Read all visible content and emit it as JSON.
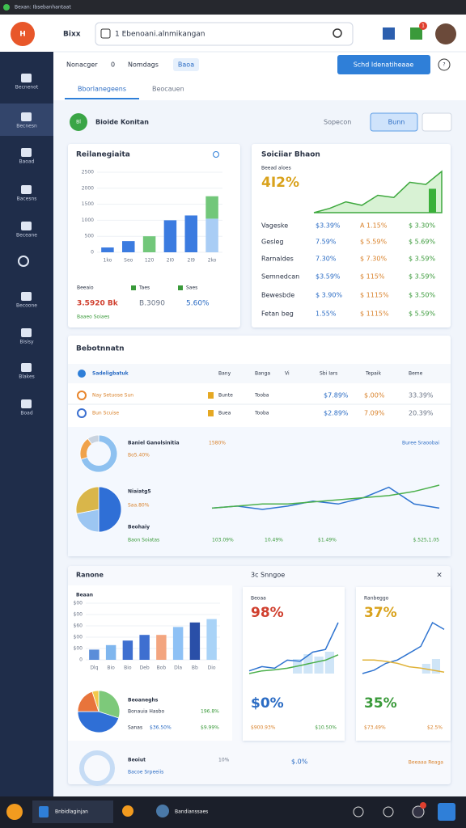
{
  "os_bar": {
    "title": "Bexan: Ibsebanhantaat"
  },
  "header": {
    "logo": "H",
    "brand": "Bixx",
    "search": "1 Ebenoani.alnmikangan",
    "badge": "1"
  },
  "sidebar": [
    "Becnenot",
    "Becnesn",
    "Baoad",
    "Bacesns",
    "Beceane",
    "Becoone",
    "Bisisy",
    "Blakes",
    "Boad"
  ],
  "toolbar": {
    "items": [
      "Nonacger",
      "0",
      "Nomdags"
    ],
    "chip": "Baoa",
    "button": "Schd Idenatiheaae",
    "help": "?"
  },
  "tabs": [
    "Bborlanegeens",
    "Beocauen"
  ],
  "filter": {
    "badge": "Bl",
    "title": "Bioide Konitan",
    "sort": "Sopecon",
    "button": "Bunn"
  },
  "revenue": {
    "title": "Reilanegiaita",
    "ylim": [
      0,
      2500
    ],
    "yticks": [
      0,
      500,
      1000,
      1500,
      2000,
      2500
    ],
    "categories": [
      "1ko",
      "Seo",
      "120",
      "2I0",
      "2I9",
      "2ko"
    ],
    "series": [
      {
        "color": "#3b7be0",
        "values": [
          150,
          350,
          0,
          1000,
          1150,
          0
        ]
      },
      {
        "color": "#a9cdf5",
        "values": [
          0,
          0,
          0,
          0,
          0,
          1050
        ]
      },
      {
        "color": "#72c77a",
        "values": [
          0,
          0,
          500,
          0,
          0,
          700
        ]
      }
    ],
    "stats": [
      {
        "label": "Beeaio",
        "value": "3.5920 Bk"
      },
      {
        "label": "Taes",
        "value": "B.3090"
      },
      {
        "label": "Saes",
        "value": "5.60%"
      }
    ],
    "footer": "Baaeo Soiaes"
  },
  "summary": {
    "title": "Soiciiar Bhaon",
    "subtitle": "Beead aloes",
    "headline": "4I2%",
    "trend": [
      0.05,
      0.15,
      0.3,
      0.22,
      0.45,
      0.4,
      0.75,
      0.7,
      1.0
    ],
    "highlight": 0.6,
    "rows": [
      [
        "Vageske",
        "$3.39%",
        "A 1.15%",
        "$ 3.30%"
      ],
      [
        "Gesleg",
        "7.59%",
        "$ 5.59%",
        "$ 5.69%"
      ],
      [
        "Rarnaldes",
        "7.30%",
        "$ 7.30%",
        "$ 3.59%"
      ],
      [
        "Semnedcan",
        "$3.59%",
        "$ 115%",
        "$ 3.59%"
      ],
      [
        "Bewesbde",
        "$ 3.90%",
        "$ 1115%",
        "$ 3.50%"
      ],
      [
        "Fetan beg",
        "1.55%",
        "$ 1115%",
        "$ 5.59%"
      ]
    ]
  },
  "ranking": {
    "title": "Bebotnnatn",
    "columns": [
      "Sadeligbatuk",
      "Bany",
      "Banga",
      "Vi",
      "Sbi Iars",
      "Tepaik",
      "Beme"
    ],
    "rows": [
      [
        "Nay Setuose Sun",
        "Bunte",
        "Tooba",
        "$7.89%",
        "$.00%",
        "33.39%"
      ],
      [
        "Bun Scuise",
        "Buea",
        "Tooba",
        "$2.89%",
        "7.09%",
        "20.39%"
      ]
    ],
    "donut": {
      "values": [
        70,
        20,
        10
      ],
      "colors": [
        "#8ec1f0",
        "#f0a24a",
        "#c9d3df"
      ],
      "title": "Baniel Ganolsinitia",
      "value": "1580%",
      "sub": "Bo5.40%",
      "link": "Buree Sraoobai"
    },
    "pie": {
      "values": [
        50,
        22,
        28
      ],
      "colors": [
        "#2f6fd6",
        "#9cc6f2",
        "#d9b64a"
      ],
      "title": "Niaiatg5",
      "value": "Saa.80%",
      "label": "Beohaiy",
      "footer": "Baon Soiatas"
    },
    "lines": [
      {
        "color": "#2f74d0",
        "values": [
          0.45,
          0.5,
          0.42,
          0.5,
          0.62,
          0.55,
          0.7,
          0.95,
          0.55,
          0.45
        ]
      },
      {
        "color": "#4bb04b",
        "values": [
          0.45,
          0.5,
          0.55,
          0.55,
          0.6,
          0.65,
          0.7,
          0.75,
          0.85,
          1.0
        ]
      }
    ],
    "totals": [
      "103.09%",
      "10.49%",
      "$1.49%",
      "$.525,1.05"
    ]
  },
  "bottom": {
    "title": "Ranone",
    "bars": {
      "title": "Beaan",
      "ylim": [
        0,
        500
      ],
      "yticks": [
        {
          "value": 0,
          "label": "0"
        },
        {
          "value": 100,
          "label": "$00"
        },
        {
          "value": 200,
          "label": "$00"
        },
        {
          "value": 300,
          "label": "$60"
        },
        {
          "value": 400,
          "label": "$00"
        },
        {
          "value": 500,
          "label": "$00"
        }
      ],
      "categories": [
        "Dlq",
        "Bio",
        "Bio",
        "Deb",
        "Bob",
        "Dla",
        "Bb",
        "Dio"
      ],
      "values": [
        90,
        130,
        170,
        220,
        220,
        290,
        330,
        360
      ],
      "colors": [
        "#5b8dd9",
        "#7fb6ee",
        "#3e6fd0",
        "#3e6fd0",
        "#f3a57f",
        "#8ec1f5",
        "#2a4fa8",
        "#a9d3f7"
      ]
    },
    "pie": {
      "values": [
        30,
        45,
        20,
        5
      ],
      "colors": [
        "#7dc97a",
        "#2f6fd6",
        "#e8743b",
        "#f2c84b"
      ],
      "title": "Beoaneghs",
      "legend": "Bonauia Hasbo",
      "legend_value": "196.8%",
      "rows": [
        "Sanas",
        "$36.50%",
        "$9.99%"
      ]
    },
    "compare": {
      "title": "3c Snngoe",
      "close": "×",
      "cards": [
        {
          "label": "Beoaa",
          "headline": "98%",
          "lines": [
            {
              "color": "#2f74d0",
              "values": [
                0.1,
                0.18,
                0.15,
                0.3,
                0.28,
                0.45,
                0.5,
                1.0
              ]
            },
            {
              "color": "#4bb04b",
              "values": [
                0.05,
                0.1,
                0.12,
                0.15,
                0.2,
                0.25,
                0.3,
                0.4
              ]
            }
          ],
          "bars": [
            0,
            0,
            0,
            0,
            0.3,
            0.4,
            0.35,
            0.45
          ],
          "figure": "$0%",
          "foot": [
            "$900.93%",
            "$10.50%"
          ]
        },
        {
          "label": "Ranbeggo",
          "headline": "37%",
          "lines": [
            {
              "color": "#2f74d0",
              "values": [
                0.1,
                0.15,
                0.25,
                0.3,
                0.4,
                0.5,
                0.85,
                0.75
              ]
            },
            {
              "color": "#e0b33a",
              "values": [
                0.3,
                0.3,
                0.28,
                0.25,
                0.2,
                0.18,
                0.15,
                0.12
              ]
            }
          ],
          "bars": [
            0,
            0,
            0,
            0,
            0,
            0,
            0.2,
            0.3
          ],
          "figure": "35%",
          "foot": [
            "$73.49%",
            "$2.5%"
          ]
        }
      ]
    },
    "strip": {
      "title": "Beoiut",
      "link": "Bacoe Srpeeiis",
      "values": [
        "10%",
        "$.0%"
      ],
      "action": "Beeaaa Reaga"
    }
  },
  "taskbar": {
    "active": "Bnbidlaginjan",
    "item": "Bandianssaes"
  }
}
